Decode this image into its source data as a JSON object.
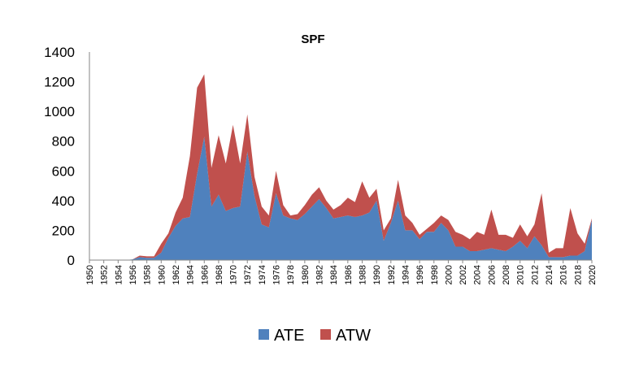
{
  "chart_data": {
    "type": "area",
    "stacked": true,
    "title": "SPF",
    "xlabel": "",
    "ylabel": "",
    "ylim": [
      0,
      1400
    ],
    "yticks": [
      0,
      200,
      400,
      600,
      800,
      1000,
      1200,
      1400
    ],
    "xlim": [
      1950,
      2020
    ],
    "xticks": [
      1950,
      1952,
      1954,
      1956,
      1958,
      1960,
      1962,
      1964,
      1966,
      1968,
      1970,
      1972,
      1974,
      1976,
      1978,
      1980,
      1982,
      1984,
      1986,
      1988,
      1990,
      1992,
      1994,
      1996,
      1998,
      2000,
      2002,
      2004,
      2006,
      2008,
      2010,
      2012,
      2014,
      2016,
      2018,
      2020
    ],
    "grid": false,
    "legend_position": "bottom",
    "x": [
      1950,
      1951,
      1952,
      1953,
      1954,
      1955,
      1956,
      1957,
      1958,
      1959,
      1960,
      1961,
      1962,
      1963,
      1964,
      1965,
      1966,
      1967,
      1968,
      1969,
      1970,
      1971,
      1972,
      1973,
      1974,
      1975,
      1976,
      1977,
      1978,
      1979,
      1980,
      1981,
      1982,
      1983,
      1984,
      1985,
      1986,
      1987,
      1988,
      1989,
      1990,
      1991,
      1992,
      1993,
      1994,
      1995,
      1996,
      1997,
      1998,
      1999,
      2000,
      2001,
      2002,
      2003,
      2004,
      2005,
      2006,
      2007,
      2008,
      2009,
      2010,
      2011,
      2012,
      2013,
      2014,
      2015,
      2016,
      2017,
      2018,
      2019,
      2020
    ],
    "series": [
      {
        "name": "ATE",
        "color": "#4f81bd",
        "values": [
          0,
          0,
          0,
          0,
          0,
          0,
          5,
          20,
          15,
          15,
          50,
          150,
          230,
          280,
          290,
          580,
          830,
          360,
          440,
          330,
          350,
          360,
          730,
          430,
          240,
          220,
          450,
          300,
          280,
          270,
          310,
          360,
          410,
          350,
          280,
          290,
          300,
          290,
          300,
          320,
          400,
          130,
          250,
          400,
          200,
          200,
          140,
          190,
          190,
          250,
          200,
          90,
          90,
          60,
          60,
          70,
          80,
          70,
          60,
          90,
          130,
          80,
          160,
          100,
          20,
          20,
          20,
          30,
          30,
          60,
          270
        ]
      },
      {
        "name": "ATW",
        "color": "#c0504d",
        "values": [
          0,
          0,
          0,
          0,
          0,
          0,
          0,
          10,
          10,
          10,
          60,
          30,
          90,
          140,
          410,
          580,
          420,
          260,
          400,
          320,
          560,
          290,
          250,
          130,
          120,
          80,
          150,
          70,
          20,
          40,
          60,
          80,
          80,
          50,
          60,
          80,
          120,
          100,
          230,
          100,
          80,
          70,
          30,
          140,
          100,
          50,
          30,
          20,
          60,
          50,
          70,
          100,
          80,
          80,
          130,
          100,
          260,
          100,
          110,
          60,
          110,
          80,
          80,
          350,
          30,
          60,
          60,
          320,
          150,
          50,
          10
        ]
      }
    ]
  }
}
